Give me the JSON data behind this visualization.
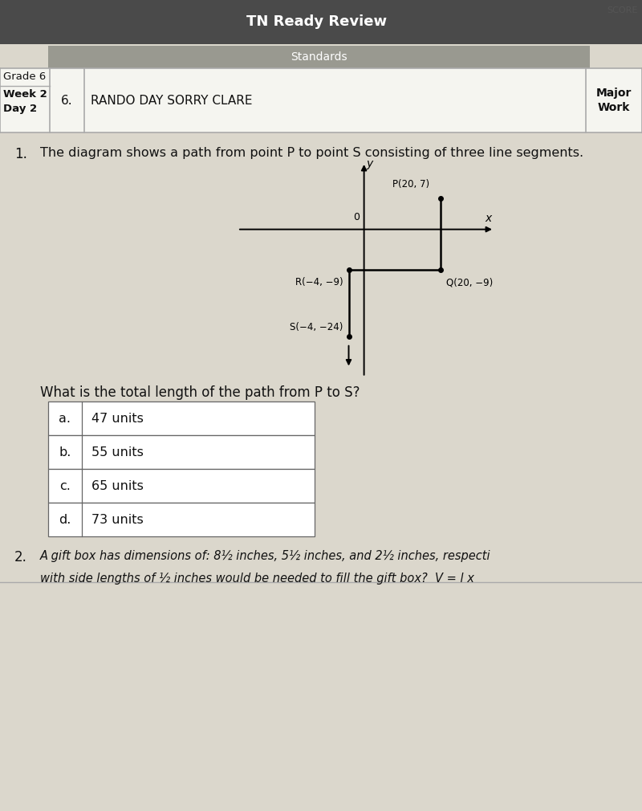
{
  "title": "TN Ready Review",
  "subtitle": "Standards",
  "score_label": "SCORE",
  "grade": "Grade 6",
  "week_day": "Week 2\nDay 2",
  "number": "6.",
  "standard_text": "RANDO DAY SORRY CLARE",
  "major_work": "Major\nWork",
  "question_number": "1.",
  "question_text": "The diagram shows a path from point P to point S consisting of three line segments.",
  "points": {
    "P": [
      20,
      7
    ],
    "Q": [
      20,
      -9
    ],
    "R": [
      -4,
      -9
    ],
    "S": [
      -4,
      -24
    ]
  },
  "point_labels": {
    "P": "P(20, 7)",
    "Q": "Q(20, −9)",
    "R": "R(−4, −9)",
    "S": "S(−4, −24)"
  },
  "answer_question": "What is the total length of the path from P to S?",
  "choices": [
    {
      "letter": "a.",
      "text": "47 units"
    },
    {
      "letter": "b.",
      "text": "55 units"
    },
    {
      "letter": "c.",
      "text": "65 units"
    },
    {
      "letter": "d.",
      "text": "73 units"
    }
  ],
  "q2_line1": "A gift box has dimensions of: 8½ inches, 5½ inches, and 2½ inches, respecti",
  "q2_line2": "with side lengths of ½ inches would be needed to fill the gift box?  V = l x",
  "bg_color": "#d4d0c8",
  "paper_color": "#dbd7cc",
  "line_color": "#222222",
  "text_color": "#111111",
  "header_dark_color": "#4a4a4a",
  "header_mid_color": "#888880",
  "table_bg": "#f5f5f0"
}
